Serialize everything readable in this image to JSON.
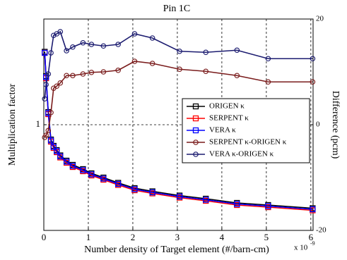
{
  "chart_data": {
    "type": "line",
    "title": "Pin 1C",
    "xlabel": "Number density of Target element (#/barn-cm)",
    "x_multiplier": {
      "base": "x 10",
      "exponent": "-9"
    },
    "ylabel": "Multiplication factor",
    "y2label": "Difference (pcm)",
    "x": [
      0.02,
      0.05,
      0.1,
      0.16,
      0.22,
      0.29,
      0.37,
      0.51,
      0.65,
      0.88,
      1.07,
      1.34,
      1.67,
      2.04,
      2.44,
      3.05,
      3.64,
      4.34,
      5.04,
      6.04
    ],
    "xlim": [
      0,
      6.05
    ],
    "xticks": [
      0,
      1,
      2,
      3,
      4,
      5,
      6
    ],
    "ylim": [
      0.9,
      1.1
    ],
    "yticks": [
      1
    ],
    "y2lim": [
      -20,
      20
    ],
    "y2ticks": [
      -20,
      0,
      20
    ],
    "grid": true,
    "legend": "right",
    "series": [
      {
        "name": "ORIGEN κ",
        "color": "#000000",
        "marker": "square",
        "values": [
          1.069,
          1.046,
          1.012,
          0.986,
          0.98,
          0.976,
          0.971,
          0.966,
          0.962,
          0.958,
          0.954,
          0.95,
          0.945,
          0.94,
          0.937,
          0.933,
          0.93,
          0.926,
          0.924,
          0.921
        ]
      },
      {
        "name": "SERPENT κ",
        "color": "#ff0000",
        "marker": "square",
        "values": [
          1.068,
          1.044,
          1.01,
          0.984,
          0.978,
          0.974,
          0.969,
          0.964,
          0.96,
          0.956,
          0.952,
          0.948,
          0.943,
          0.938,
          0.935,
          0.931,
          0.928,
          0.924,
          0.922,
          0.919
        ]
      },
      {
        "name": "VERA κ",
        "color": "#0000ff",
        "marker": "square",
        "values": [
          1.068,
          1.045,
          1.011,
          0.985,
          0.979,
          0.975,
          0.97,
          0.965,
          0.961,
          0.957,
          0.953,
          0.949,
          0.944,
          0.939,
          0.936,
          0.932,
          0.929,
          0.925,
          0.923,
          0.92
        ]
      },
      {
        "name": "SERPENT κ-ORIGEN κ",
        "color": "#7a1c1c",
        "marker": "circle",
        "axis": "y2",
        "values": [
          -2.4,
          -2.0,
          -1.1,
          2.3,
          6.9,
          7.3,
          7.9,
          9.3,
          9.3,
          9.6,
          9.9,
          10.0,
          10.3,
          12.0,
          11.6,
          10.5,
          10.1,
          9.3,
          8.1,
          8.1
        ]
      },
      {
        "name": "VERA κ-ORIGEN κ",
        "color": "#1c1c70",
        "marker": "circle",
        "axis": "y2",
        "values": [
          4.9,
          7.6,
          9.6,
          13.6,
          16.9,
          17.2,
          17.6,
          14.0,
          14.7,
          15.5,
          15.2,
          14.9,
          15.2,
          17.2,
          16.4,
          13.9,
          13.7,
          14.1,
          12.5,
          12.5
        ]
      }
    ]
  }
}
